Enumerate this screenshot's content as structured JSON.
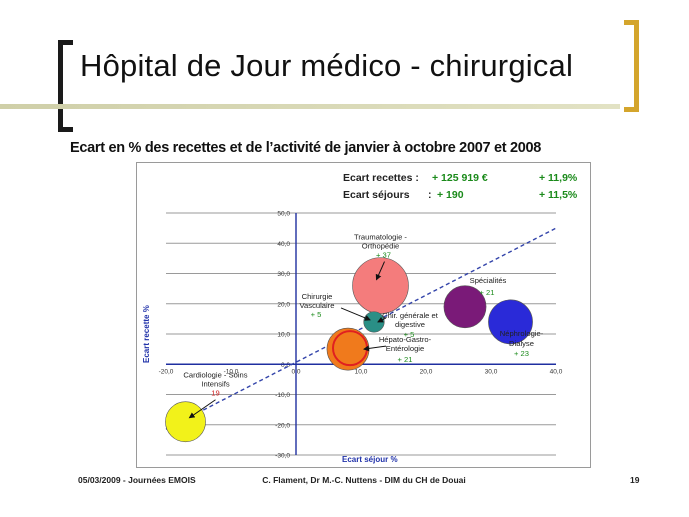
{
  "slide": {
    "title": "Hôpital de Jour médico - chirurgical",
    "subtitle": "Ecart en % des recettes et de l’activité de janvier à octobre 2007 et 2008",
    "footer_date": "05/03/2009 - Journées EMOIS",
    "footer_authors": "C. Flament, Dr M.-C. Nuttens - DIM du CH de Douai",
    "footer_page": "19"
  },
  "summary": {
    "recettes_label": "Ecart recettes :",
    "recettes_value": "+ 125 919 €",
    "recettes_pct": "+ 11,9%",
    "sejours_label": "Ecart séjours",
    "sejours_sep": ":",
    "sejours_value": "+ 190",
    "sejours_pct": "+ 11,5%"
  },
  "chart_data": {
    "type": "scatter",
    "xlabel": "Ecart séjour %",
    "ylabel": "Ecart recette %",
    "xlim": [
      -20,
      40
    ],
    "ylim": [
      -30,
      50
    ],
    "x_ticks": [
      "-20,0",
      "-10,0",
      "0,0",
      "10,0",
      "20,0",
      "30,0",
      "40,0"
    ],
    "y_ticks": [
      "50,0",
      "40,0",
      "30,0",
      "20,0",
      "10,0",
      "0,0",
      "-10,0",
      "-20,0",
      "-30,0"
    ],
    "grid": true,
    "points": [
      {
        "name": "Traumatologie - Orthopédie",
        "x": 13,
        "y": 26,
        "size": 37,
        "count": "+ 37",
        "color": "#f47c7c"
      },
      {
        "name": "Chirurgie Vasculaire",
        "x": 12,
        "y": 14,
        "size": 5,
        "count": "+ 5",
        "color": "#2a8f86"
      },
      {
        "name": "Chir. générale et digestive",
        "x": 12,
        "y": 14,
        "size": 5,
        "count": "+ 5",
        "color": "#2a8f86"
      },
      {
        "name": "Spécialités",
        "x": 26,
        "y": 19,
        "size": 21,
        "count": "+ 21",
        "color": "#7a1a78"
      },
      {
        "name": "Hépato-Gastro-Entérologie",
        "x": 8,
        "y": 5,
        "size": 21,
        "count": "+ 21",
        "color": "#f07a1c"
      },
      {
        "name": "Néphrologie-Dialyse",
        "x": 33,
        "y": 14,
        "size": 23,
        "count": "+ 23",
        "color": "#2a2ad8"
      },
      {
        "name": "Cardiologie - Soins Intensifs",
        "x": -17,
        "y": -19,
        "size": 19,
        "count": "19",
        "color": "#f2f21a"
      }
    ],
    "trend_line": {
      "from": [
        -20,
        -21.5
      ],
      "to": [
        40,
        45
      ]
    }
  }
}
